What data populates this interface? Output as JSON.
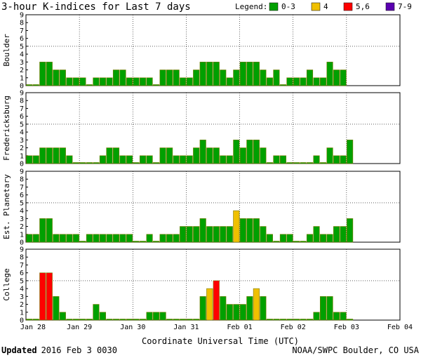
{
  "title": "3-hour K-indices for Last 7 days",
  "legend": {
    "label": "Legend:",
    "items": [
      {
        "label": "0-3",
        "color": "#00a000"
      },
      {
        "label": "4",
        "color": "#f0c000"
      },
      {
        "label": "5,6",
        "color": "#ff0000"
      },
      {
        "label": "7-9",
        "color": "#5a00b0"
      }
    ]
  },
  "footer": {
    "updated_label": "Updated",
    "updated_value": "2016 Feb  3 0030",
    "source": "NOAA/SWPC Boulder, CO USA"
  },
  "chart_data": {
    "type": "bar",
    "xlabel": "Coordinate Universal Time (UTC)",
    "x_tick_labels": [
      "Jan 28",
      "Jan 29",
      "Jan 30",
      "Jan 31",
      "Feb 01",
      "Feb 02",
      "Feb 03",
      "Feb 04"
    ],
    "y_ticks": [
      0,
      1,
      2,
      3,
      4,
      5,
      6,
      7,
      8,
      9
    ],
    "ylim": [
      0,
      9
    ],
    "grid": true,
    "series": [
      {
        "name": "Boulder",
        "values": [
          0,
          0,
          3,
          3,
          2,
          2,
          1,
          1,
          1,
          0,
          1,
          1,
          1,
          2,
          2,
          1,
          1,
          1,
          1,
          0,
          2,
          2,
          2,
          1,
          1,
          2,
          3,
          3,
          3,
          2,
          1,
          2,
          3,
          3,
          3,
          2,
          1,
          2,
          0,
          1,
          1,
          1,
          2,
          1,
          1,
          3,
          2,
          2
        ]
      },
      {
        "name": "Fredericksburg",
        "values": [
          1,
          1,
          2,
          2,
          2,
          2,
          1,
          0,
          0,
          0,
          0,
          1,
          2,
          2,
          1,
          1,
          0,
          1,
          1,
          0,
          2,
          2,
          1,
          1,
          1,
          2,
          3,
          2,
          2,
          1,
          1,
          3,
          2,
          3,
          3,
          2,
          0,
          1,
          1,
          0,
          0,
          0,
          0,
          1,
          0,
          2,
          1,
          1,
          3
        ]
      },
      {
        "name": "Est. Planetary",
        "values": [
          1,
          1,
          3,
          3,
          1,
          1,
          1,
          1,
          0,
          1,
          1,
          1,
          1,
          1,
          1,
          1,
          0,
          0,
          1,
          0,
          1,
          1,
          1,
          2,
          2,
          2,
          3,
          2,
          2,
          2,
          2,
          4,
          3,
          3,
          3,
          2,
          1,
          0,
          1,
          1,
          0,
          0,
          1,
          2,
          1,
          1,
          2,
          2,
          3
        ]
      },
      {
        "name": "College",
        "values": [
          0,
          0,
          6,
          6,
          3,
          1,
          0,
          0,
          0,
          0,
          2,
          1,
          0,
          0,
          0,
          0,
          0,
          0,
          1,
          1,
          1,
          0,
          0,
          0,
          0,
          0,
          3,
          4,
          5,
          3,
          2,
          2,
          2,
          3,
          4,
          3,
          0,
          0,
          0,
          0,
          0,
          0,
          0,
          1,
          3,
          3,
          1,
          1,
          0
        ]
      }
    ]
  }
}
